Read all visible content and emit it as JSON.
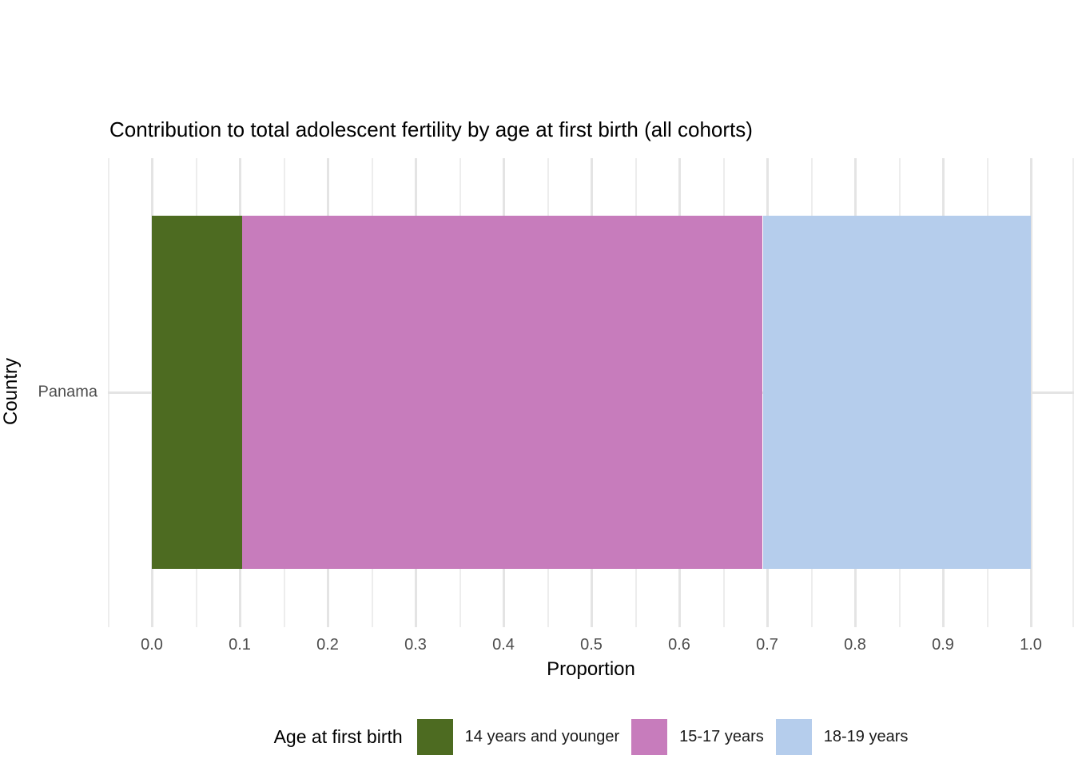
{
  "chart_data": {
    "type": "bar",
    "orientation": "horizontal",
    "stacked": true,
    "title": "Contribution to total adolescent fertility by age at first birth (all cohorts)",
    "xlabel": "Proportion",
    "ylabel": "Country",
    "categories": [
      "Panama"
    ],
    "series": [
      {
        "name": "14 years and younger",
        "color": "#4D6B21",
        "values": [
          0.103
        ]
      },
      {
        "name": "15-17 years",
        "color": "#C77CBC",
        "values": [
          0.592
        ]
      },
      {
        "name": "18-19 years",
        "color": "#B5CDEC",
        "values": [
          0.305
        ]
      }
    ],
    "legend_title": "Age at first birth",
    "legend_position": "bottom",
    "xlim": [
      0.0,
      1.0
    ],
    "x_tick_values": [
      0.0,
      0.1,
      0.2,
      0.3,
      0.4,
      0.5,
      0.6,
      0.7,
      0.8,
      0.9,
      1.0
    ],
    "x_tick_labels": [
      "0.0",
      "0.1",
      "0.2",
      "0.3",
      "0.4",
      "0.5",
      "0.6",
      "0.7",
      "0.8",
      "0.9",
      "1.0"
    ],
    "x_minor_tick_values": [
      -0.05,
      0.05,
      0.15,
      0.25,
      0.35,
      0.45,
      0.55,
      0.65,
      0.75,
      0.85,
      0.95,
      1.05
    ],
    "grid": true
  },
  "colors": {
    "background": "#FFFFFF",
    "grid_major": "#E4E4E4",
    "grid_minor": "#EDEDED",
    "tick_text": "#4D4D4D",
    "title_text": "#000000"
  }
}
